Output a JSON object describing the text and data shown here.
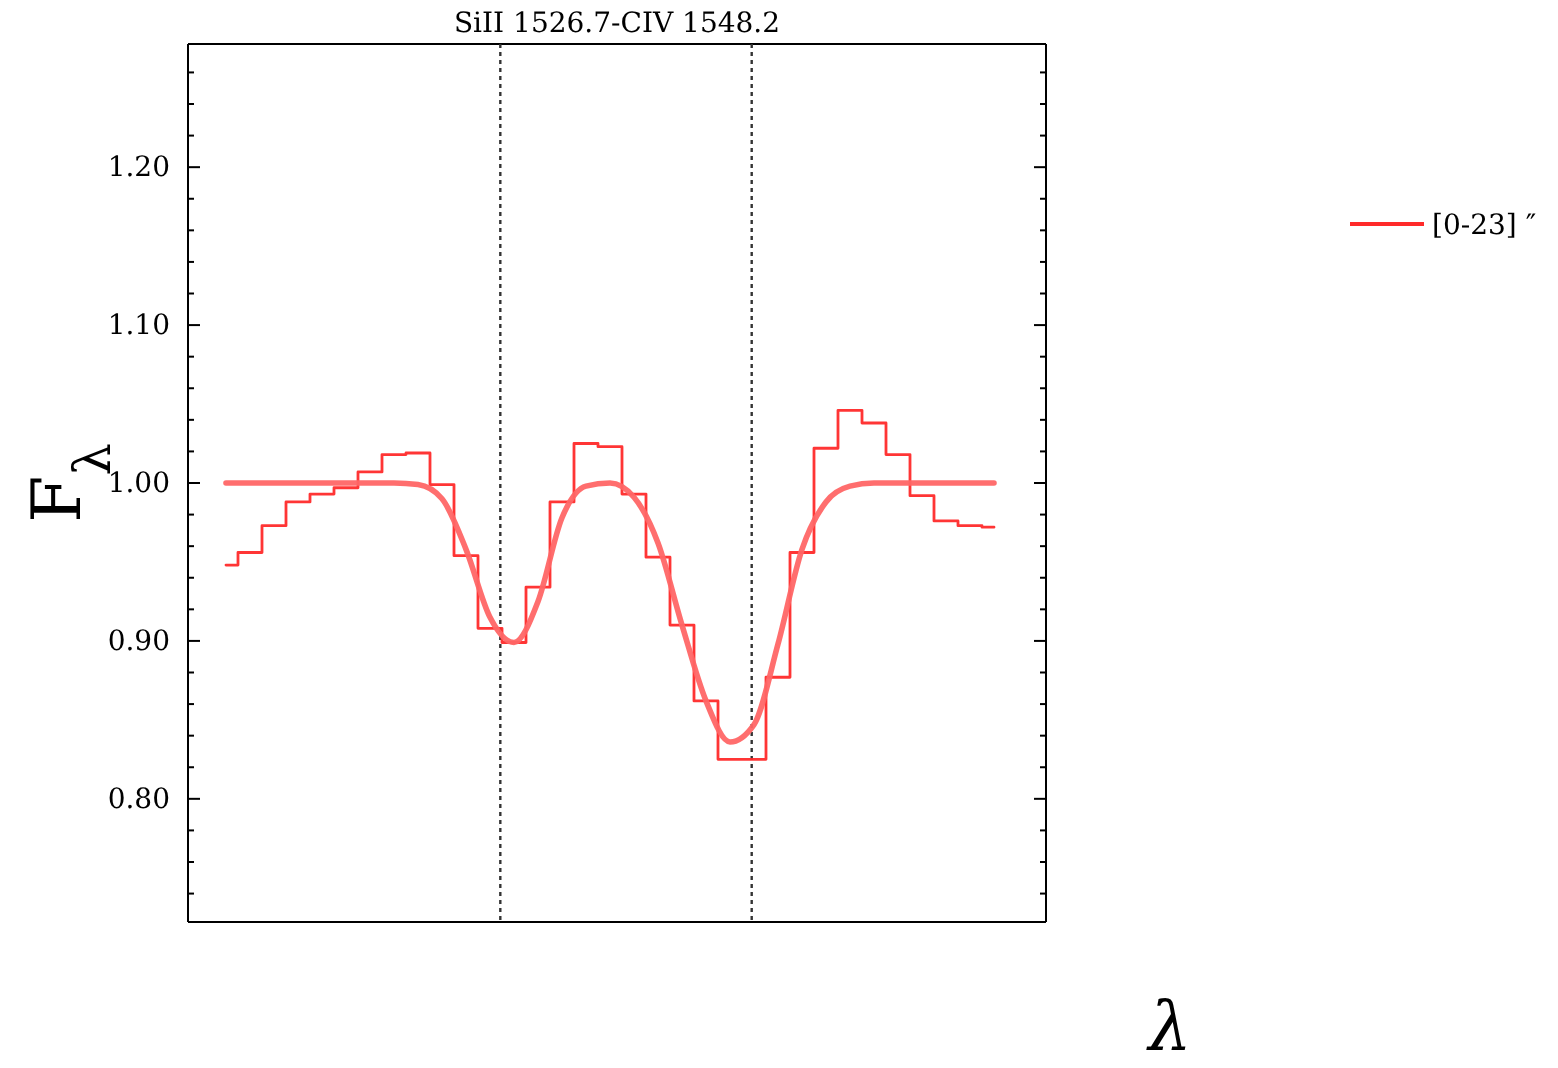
{
  "chart_data": {
    "type": "step",
    "title": "SiII 1526.7-CIV 1548.2",
    "ylabel": "F$_{λ}$",
    "xlabel": "λ",
    "categories": [
      null,
      null,
      null,
      null,
      null,
      null,
      null,
      null,
      null,
      null,
      null,
      null,
      null,
      null,
      null,
      null,
      null,
      null,
      null,
      null,
      null,
      null,
      null,
      null,
      null,
      null,
      null,
      null,
      null,
      null,
      null,
      null,
      null
    ],
    "ylim": [
      0.722,
      1.278
    ],
    "yticks": [
      {
        "value": 0.74,
        "label": null
      },
      {
        "value": 0.76,
        "label": null
      },
      {
        "value": 0.78,
        "label": null
      },
      {
        "value": 0.8,
        "label": "0.80"
      },
      {
        "value": 0.82,
        "label": null
      },
      {
        "value": 0.84,
        "label": null
      },
      {
        "value": 0.86,
        "label": null
      },
      {
        "value": 0.88,
        "label": null
      },
      {
        "value": 0.9,
        "label": "0.90"
      },
      {
        "value": 0.92,
        "label": null
      },
      {
        "value": 0.94,
        "label": null
      },
      {
        "value": 0.96,
        "label": null
      },
      {
        "value": 0.98,
        "label": null
      },
      {
        "value": 1.0,
        "label": "1.00"
      },
      {
        "value": 1.02,
        "label": null
      },
      {
        "value": 1.04,
        "label": null
      },
      {
        "value": 1.06,
        "label": null
      },
      {
        "value": 1.08,
        "label": null
      },
      {
        "value": 1.1,
        "label": "1.10"
      },
      {
        "value": 1.12,
        "label": null
      },
      {
        "value": 1.14,
        "label": null
      },
      {
        "value": 1.16,
        "label": null
      },
      {
        "value": 1.18,
        "label": null
      },
      {
        "value": 1.2,
        "label": "1.20"
      },
      {
        "value": 1.22,
        "label": null
      },
      {
        "value": 1.24,
        "label": null
      },
      {
        "value": 1.26,
        "label": null
      }
    ],
    "grid": false,
    "legend": "top right",
    "series": [
      {
        "name": "[0-23] ″",
        "color": "#ff2a2a",
        "values": [
          0.948,
          0.956,
          0.973,
          0.988,
          0.993,
          0.997,
          1.007,
          1.018,
          1.019,
          0.999,
          0.954,
          0.908,
          0.899,
          0.934,
          0.988,
          1.025,
          1.023,
          0.993,
          0.953,
          0.91,
          0.862,
          0.825,
          0.825,
          0.877,
          0.956,
          1.022,
          1.046,
          1.038,
          1.018,
          0.992,
          0.976,
          0.973,
          0.972
        ]
      },
      {
        "type": "line",
        "color": "#ff6666",
        "values": [
          1.0,
          1.0,
          1.0,
          1.0,
          1.0,
          1.0,
          1.0,
          1.0,
          0.999,
          0.99,
          0.958,
          0.915,
          0.899,
          0.925,
          0.978,
          0.998,
          1.0,
          0.991,
          0.962,
          0.91,
          0.862,
          0.836,
          0.847,
          0.898,
          0.958,
          0.988,
          0.998,
          1.0,
          1.0,
          1.0,
          1.0,
          1.0,
          1.0
        ]
      }
    ]
  }
}
